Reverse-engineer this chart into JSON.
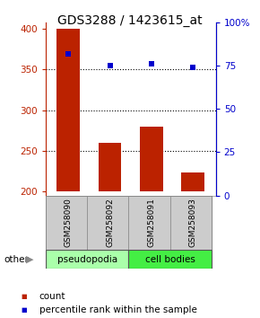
{
  "title": "GDS3288 / 1423615_at",
  "samples": [
    "GSM258090",
    "GSM258092",
    "GSM258091",
    "GSM258093"
  ],
  "bar_values": [
    400,
    260,
    280,
    223
  ],
  "bar_bottom": 200,
  "percentile_values": [
    82,
    75,
    76,
    74
  ],
  "bar_color": "#bb2200",
  "marker_color": "#0000cc",
  "ylim_left": [
    195,
    408
  ],
  "ylim_right": [
    0,
    100
  ],
  "yticks_left": [
    200,
    250,
    300,
    350,
    400
  ],
  "yticks_right": [
    0,
    25,
    50,
    75,
    100
  ],
  "ytick_labels_right": [
    "0",
    "25",
    "50",
    "75",
    "100%"
  ],
  "groups": [
    {
      "label": "pseudopodia",
      "color": "#aaffaa"
    },
    {
      "label": "cell bodies",
      "color": "#44ee44"
    }
  ],
  "other_label": "other",
  "legend_count_label": "count",
  "legend_pct_label": "percentile rank within the sample",
  "bg_color": "#ffffff",
  "plot_bg": "#ffffff",
  "label_area_color": "#cccccc",
  "title_fontsize": 10,
  "grid_ticks": [
    250,
    300,
    350
  ]
}
